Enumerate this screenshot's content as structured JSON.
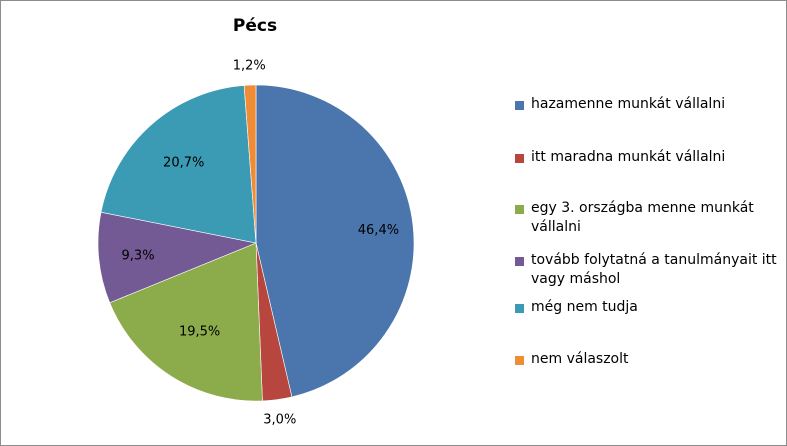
{
  "chart_data": {
    "type": "pie",
    "title": "Pécs",
    "slices": [
      {
        "label": "hazamenne munkát vállalni",
        "value": 46.4,
        "value_label": "46,4%",
        "color": "#4a76ad"
      },
      {
        "label": "itt maradna munkát vállalni",
        "value": 3.0,
        "value_label": "3,0%",
        "color": "#b7463f"
      },
      {
        "label": "egy 3. országba menne munkát vállalni",
        "value": 19.5,
        "value_label": "19,5%",
        "color": "#8cac4c"
      },
      {
        "label": "tovább folytatná a tanulmányait itt vagy máshol",
        "value": 9.3,
        "value_label": "9,3%",
        "color": "#735a94"
      },
      {
        "label": "még nem tudja",
        "value": 20.7,
        "value_label": "20,7%",
        "color": "#3b9ab4"
      },
      {
        "label": "nem válaszolt",
        "value": 1.2,
        "value_label": "1,2%",
        "color": "#ee8d36"
      }
    ],
    "start_angle_deg": 0,
    "direction": "clockwise",
    "legend_position": "right"
  }
}
